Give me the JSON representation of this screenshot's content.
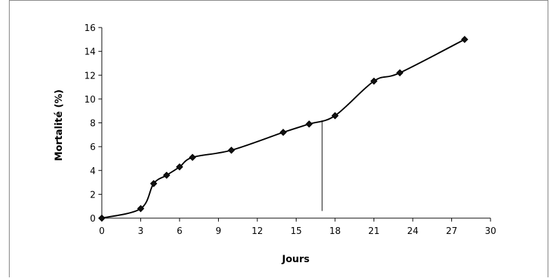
{
  "chart_data": {
    "type": "line",
    "title": "",
    "xlabel": "Jours",
    "ylabel": "Mortalité (%)",
    "xlim": [
      0,
      30
    ],
    "ylim": [
      0,
      16
    ],
    "x_ticks": [
      0,
      3,
      6,
      9,
      12,
      15,
      18,
      21,
      24,
      27,
      30
    ],
    "y_ticks": [
      0,
      2,
      4,
      6,
      8,
      10,
      12,
      14,
      16
    ],
    "grid": false,
    "legend": "none",
    "series": [
      {
        "x": [
          0,
          3,
          4,
          5,
          6,
          7,
          10,
          14,
          16,
          18,
          21,
          23,
          28
        ],
        "y": [
          0,
          0.8,
          2.9,
          3.6,
          4.3,
          5.1,
          5.7,
          7.2,
          7.9,
          8.6,
          11.5,
          12.2,
          15.0
        ],
        "color": "#000000"
      }
    ],
    "annotations": [
      {
        "type": "vertical-line",
        "x": 17,
        "y_top": 8.2,
        "y_bottom": 0.6
      }
    ]
  }
}
